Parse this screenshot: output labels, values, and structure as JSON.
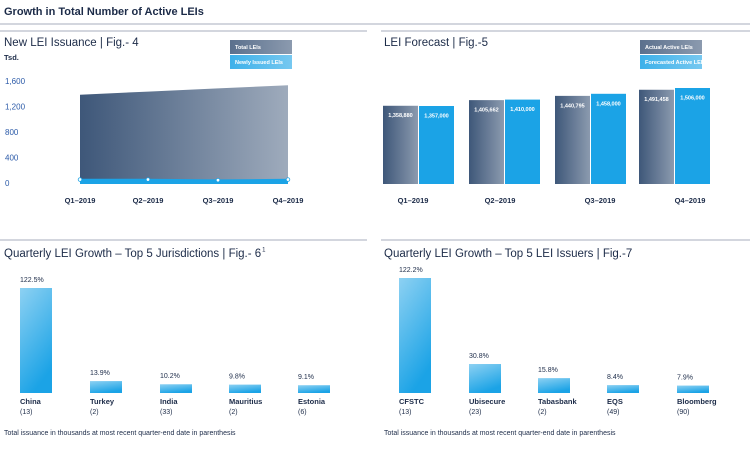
{
  "page_title": "Growth in Total Number of Active LEIs",
  "chart_data": [
    {
      "type": "area",
      "title": "New LEI Issuance | Fig.- 4",
      "y_label": "Tsd.",
      "categories": [
        "Q1–2019",
        "Q2–2019",
        "Q3–2019",
        "Q4–2019"
      ],
      "series": [
        {
          "name": "Total LEIs",
          "color": "#3e5779",
          "values": [
            1400,
            1450,
            1500,
            1550
          ]
        },
        {
          "name": "Newly Issued LEIs",
          "color": "#1ba3e6",
          "values": [
            70,
            70,
            60,
            70
          ]
        }
      ],
      "ylim": [
        0,
        1600
      ],
      "yticks": [
        0,
        400,
        800,
        {
          "value": 1200,
          "label": "1,200"
        },
        {
          "value": 1600,
          "label": "1,600"
        }
      ]
    },
    {
      "type": "grouped_bar",
      "title": "LEI Forecast | Fig.-5",
      "categories": [
        "Q1–2019",
        "Q2–2019",
        "Q3–2019",
        "Q4–2019"
      ],
      "series": [
        {
          "name": "Actual Active LEIs",
          "color": "#3e5779",
          "values": [
            1358880,
            1405662,
            1440795,
            1491458
          ],
          "value_labels": [
            "1,358,880",
            "1,405,662",
            "1,440,795",
            "1,491,458"
          ]
        },
        {
          "name": "Forecasted Active LEIs",
          "color": "#1ba3e6",
          "values": [
            1357000,
            1410000,
            1458000,
            1506000
          ],
          "value_labels": [
            "1,357,000",
            "1,410,000",
            "1,458,000",
            "1,506,000"
          ]
        }
      ]
    },
    {
      "type": "bar",
      "title": "Quarterly LEI Growth – Top 5 Jurisdictions | Fig.- 6",
      "title_note": "1",
      "categories": [
        "China",
        "Turkey",
        "India",
        "Mauritius",
        "Estonia"
      ],
      "category_notes": [
        "(13)",
        "(2)",
        "(33)",
        "(2)",
        "(6)"
      ],
      "values": [
        122.5,
        13.9,
        10.2,
        9.8,
        9.1
      ],
      "value_labels": [
        "122.5%",
        "13.9%",
        "10.2%",
        "9.8%",
        "9.1%"
      ],
      "color": "#1ba3e6",
      "footnote": "Total issuance in thousands at most recent quarter-end date in parenthesis"
    },
    {
      "type": "bar",
      "title": "Quarterly LEI Growth – Top 5 LEI Issuers | Fig.-7",
      "categories": [
        "CFSTC",
        "Ubisecure",
        "Tabasbank",
        "EQS",
        "Bloomberg"
      ],
      "category_notes": [
        "(13)",
        "(23)",
        "(2)",
        "(49)",
        "(90)"
      ],
      "values": [
        122.2,
        30.8,
        15.8,
        8.4,
        7.9
      ],
      "value_labels": [
        "122.2%",
        "30.8%",
        "15.8%",
        "8.4%",
        "7.9%"
      ],
      "color": "#1ba3e6",
      "footnote": "Total issuance in thousands at most recent quarter-end date in parenthesis"
    }
  ]
}
